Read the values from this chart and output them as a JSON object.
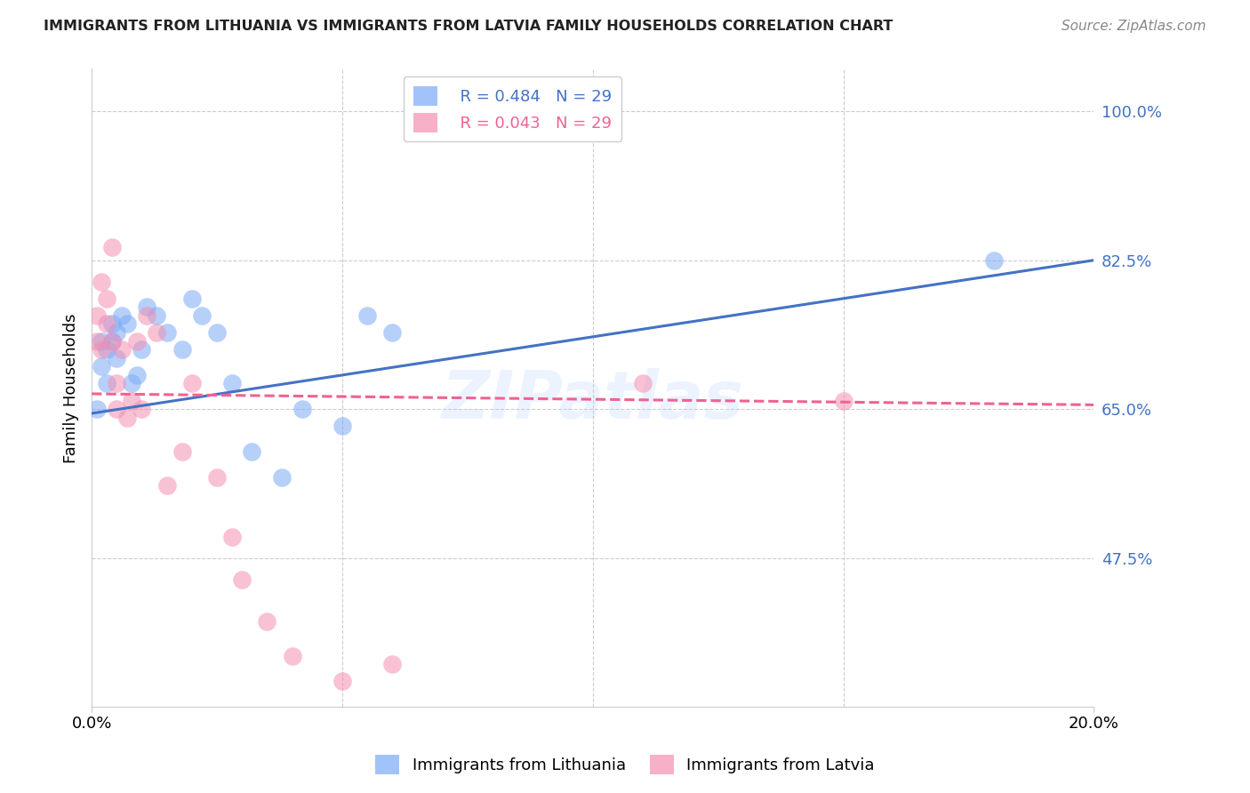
{
  "title": "IMMIGRANTS FROM LITHUANIA VS IMMIGRANTS FROM LATVIA FAMILY HOUSEHOLDS CORRELATION CHART",
  "source": "Source: ZipAtlas.com",
  "ylabel": "Family Households",
  "ytick_labels": [
    "100.0%",
    "82.5%",
    "65.0%",
    "47.5%"
  ],
  "ytick_values": [
    1.0,
    0.825,
    0.65,
    0.475
  ],
  "xlim": [
    0.0,
    0.2
  ],
  "ylim": [
    0.3,
    1.05
  ],
  "legend_R_blue": "R = 0.484",
  "legend_N_blue": "N = 29",
  "legend_R_pink": "R = 0.043",
  "legend_N_pink": "N = 29",
  "color_blue": "#7baaf7",
  "color_pink": "#f48fb1",
  "color_blue_line": "#4472c4",
  "color_pink_line": "#f06292",
  "background_color": "#ffffff",
  "watermark": "ZIPatlas",
  "lith_x": [
    0.001,
    0.002,
    0.002,
    0.003,
    0.003,
    0.004,
    0.004,
    0.005,
    0.005,
    0.006,
    0.007,
    0.008,
    0.009,
    0.01,
    0.011,
    0.013,
    0.015,
    0.018,
    0.02,
    0.022,
    0.025,
    0.028,
    0.032,
    0.038,
    0.042,
    0.05,
    0.055,
    0.06,
    0.18
  ],
  "lith_y": [
    0.65,
    0.7,
    0.73,
    0.68,
    0.72,
    0.75,
    0.73,
    0.71,
    0.74,
    0.76,
    0.75,
    0.68,
    0.69,
    0.72,
    0.77,
    0.76,
    0.74,
    0.72,
    0.78,
    0.76,
    0.74,
    0.68,
    0.6,
    0.57,
    0.65,
    0.63,
    0.76,
    0.74,
    0.825
  ],
  "latv_x": [
    0.001,
    0.001,
    0.002,
    0.002,
    0.003,
    0.003,
    0.004,
    0.004,
    0.005,
    0.005,
    0.006,
    0.007,
    0.008,
    0.009,
    0.01,
    0.011,
    0.013,
    0.015,
    0.018,
    0.02,
    0.025,
    0.028,
    0.03,
    0.035,
    0.04,
    0.05,
    0.06,
    0.11,
    0.15
  ],
  "latv_y": [
    0.73,
    0.76,
    0.72,
    0.8,
    0.75,
    0.78,
    0.73,
    0.84,
    0.65,
    0.68,
    0.72,
    0.64,
    0.66,
    0.73,
    0.65,
    0.76,
    0.74,
    0.56,
    0.6,
    0.68,
    0.57,
    0.5,
    0.45,
    0.4,
    0.36,
    0.33,
    0.35,
    0.68,
    0.66
  ],
  "blue_line_x": [
    0.0,
    0.2
  ],
  "blue_line_y": [
    0.645,
    0.825
  ],
  "pink_line_x": [
    0.0,
    0.2
  ],
  "pink_line_y": [
    0.668,
    0.655
  ]
}
